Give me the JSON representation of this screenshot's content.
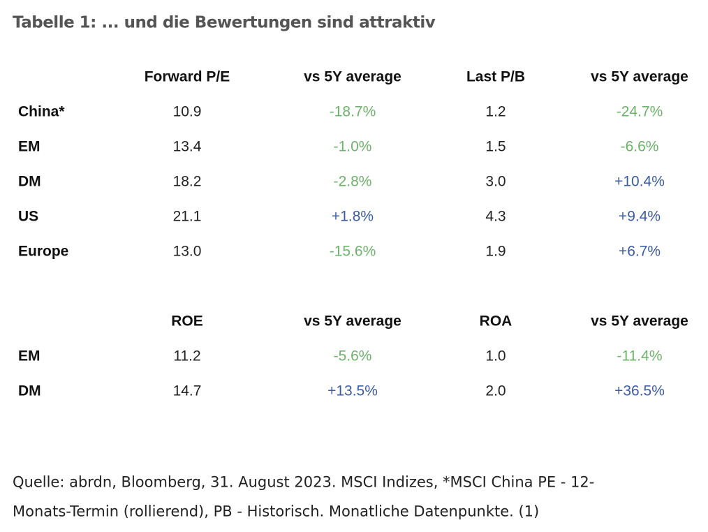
{
  "title": "Tabelle 1: ... und die Bewertungen sind attraktiv",
  "tables": [
    {
      "header": [
        "Forward P/E",
        "vs 5Y average",
        "Last P/B",
        "vs 5Y average"
      ],
      "rows": [
        {
          "label": "China*",
          "cells": [
            "10.9",
            "-18.7%",
            "1.2",
            "-24.7%"
          ]
        },
        {
          "label": "EM",
          "cells": [
            "13.4",
            "-1.0%",
            "1.5",
            "-6.6%"
          ]
        },
        {
          "label": "DM",
          "cells": [
            "18.2",
            "-2.8%",
            "3.0",
            "+10.4%"
          ]
        },
        {
          "label": "US",
          "cells": [
            "21.1",
            "+1.8%",
            "4.3",
            "+9.4%"
          ]
        },
        {
          "label": "Europe",
          "cells": [
            "13.0",
            "-15.6%",
            "1.9",
            "+6.7%"
          ]
        }
      ]
    },
    {
      "header": [
        "ROE",
        "vs 5Y average",
        "ROA",
        "vs 5Y average"
      ],
      "rows": [
        {
          "label": "EM",
          "cells": [
            "11.2",
            "-5.6%",
            "1.0",
            "-11.4%"
          ]
        },
        {
          "label": "DM",
          "cells": [
            "14.7",
            "+13.5%",
            "2.0",
            "+36.5%"
          ]
        }
      ]
    }
  ],
  "footnote": [
    "Quelle: abrdn, Bloomberg, 31. August 2023. MSCI Indizes, *MSCI China PE - 12-",
    "Monats-Termin (rollierend), PB - Historisch. Monatliche Datenpunkte. (1)"
  ]
}
